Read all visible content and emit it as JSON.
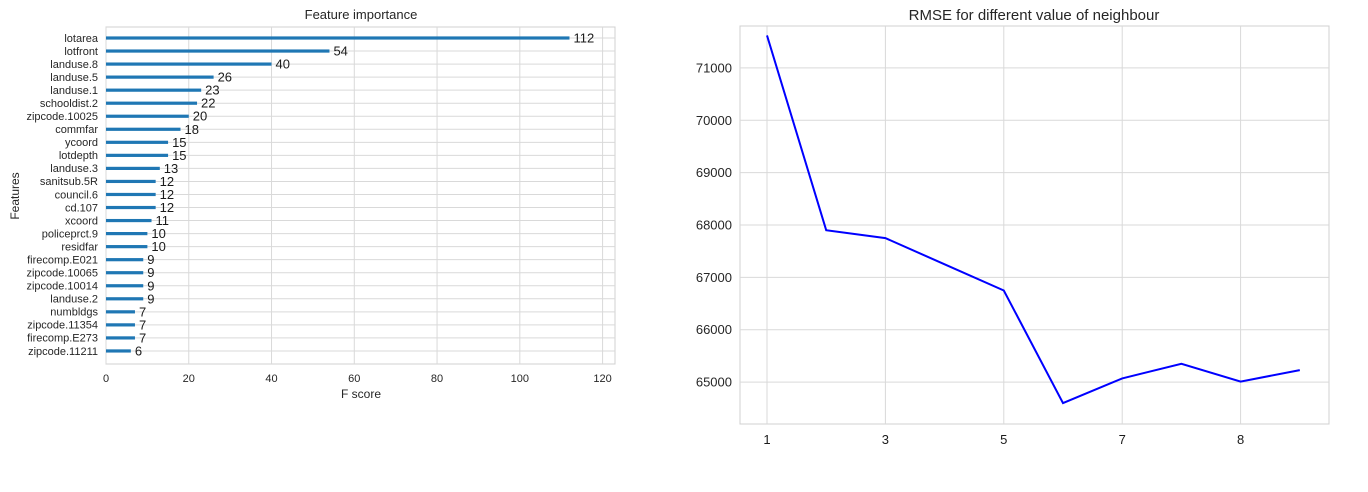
{
  "chart_data": [
    {
      "type": "bar",
      "orientation": "horizontal",
      "title": "Feature importance",
      "xlabel": "F score",
      "ylabel": "Features",
      "xlim": [
        0,
        123
      ],
      "xticks": [
        0,
        20,
        40,
        60,
        80,
        100,
        120
      ],
      "grid": true,
      "data_labels": true,
      "bar_color": "#1f77b4",
      "categories": [
        "lotarea",
        "lotfront",
        "landuse.8",
        "landuse.5",
        "landuse.1",
        "schooldist.2",
        "zipcode.10025",
        "commfar",
        "ycoord",
        "lotdepth",
        "landuse.3",
        "sanitsub.5R",
        "council.6",
        "cd.107",
        "xcoord",
        "policeprct.9",
        "residfar",
        "firecomp.E021",
        "zipcode.10065",
        "zipcode.10014",
        "landuse.2",
        "numbldgs",
        "zipcode.11354",
        "firecomp.E273",
        "zipcode.11211"
      ],
      "values": [
        112,
        54,
        40,
        26,
        23,
        22,
        20,
        18,
        15,
        15,
        13,
        12,
        12,
        12,
        11,
        10,
        10,
        9,
        9,
        9,
        9,
        7,
        7,
        7,
        6
      ]
    },
    {
      "type": "line",
      "title": "RMSE for different value of neighbour",
      "xlabel": "",
      "ylabel": "",
      "ylim": [
        64200,
        71800
      ],
      "yticks": [
        65000,
        66000,
        67000,
        68000,
        69000,
        70000,
        71000
      ],
      "xtick_labels": [
        "1",
        "3",
        "5",
        "7",
        "8"
      ],
      "grid": true,
      "line_color": "#0000ff",
      "x": [
        1,
        2,
        3,
        4,
        5,
        6,
        7,
        8,
        9,
        10
      ],
      "y": [
        71620,
        67900,
        67750,
        67250,
        66750,
        64600,
        65070,
        65350,
        65010,
        65230
      ]
    }
  ]
}
